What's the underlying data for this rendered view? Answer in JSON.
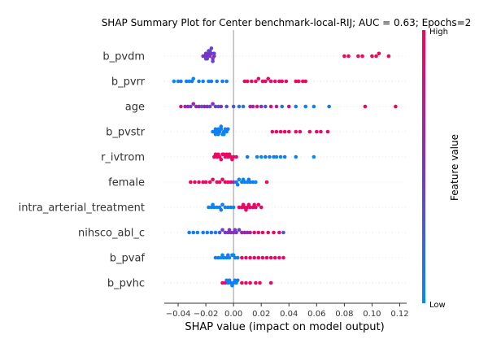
{
  "chart_data": {
    "type": "scatter",
    "subtype": "shap-beeswarm",
    "title": "SHAP Summary Plot for Center benchmark-local-RIJ; AUC = 0.63; Epochs=2",
    "xlabel": "SHAP value (impact on model output)",
    "xlim": [
      -0.05,
      0.125
    ],
    "xticks": [
      -0.04,
      -0.02,
      0.0,
      0.02,
      0.04,
      0.06,
      0.08,
      0.1,
      0.12
    ],
    "xtick_labels": [
      "−0.04",
      "−0.02",
      "0.00",
      "0.02",
      "0.04",
      "0.06",
      "0.08",
      "0.10",
      "0.12"
    ],
    "grid": false,
    "colorbar": {
      "label": "Feature value",
      "high_label": "High",
      "low_label": "Low",
      "low_color": "#008afb",
      "mid_color": "#7c33c4",
      "high_color": "#ff0052"
    },
    "features": [
      {
        "name": "b_pvdm",
        "points": [
          [
            -0.021,
            0.5
          ],
          [
            -0.02,
            0.5
          ],
          [
            -0.019,
            0.5
          ],
          [
            -0.018,
            0.5
          ],
          [
            -0.017,
            0.5
          ],
          [
            -0.016,
            0.5
          ],
          [
            -0.015,
            0.5
          ],
          [
            -0.014,
            0.5
          ],
          [
            -0.019,
            0.4
          ],
          [
            -0.017,
            0.4
          ],
          [
            -0.015,
            0.4
          ],
          [
            -0.018,
            0.4
          ],
          [
            -0.02,
            0.4
          ],
          [
            -0.016,
            0.4
          ],
          [
            -0.014,
            0.4
          ],
          [
            -0.022,
            0.5
          ],
          [
            0.08,
            0.95
          ],
          [
            0.083,
            0.95
          ],
          [
            0.09,
            0.95
          ],
          [
            0.093,
            0.95
          ],
          [
            0.1,
            0.95
          ],
          [
            0.103,
            0.95
          ],
          [
            0.105,
            0.95
          ],
          [
            0.112,
            0.95
          ]
        ]
      },
      {
        "name": "b_pvrr",
        "points": [
          [
            -0.043,
            0.0
          ],
          [
            -0.04,
            0.0
          ],
          [
            -0.038,
            0.1
          ],
          [
            -0.034,
            0.05
          ],
          [
            -0.032,
            0.0
          ],
          [
            -0.03,
            0.1
          ],
          [
            -0.029,
            0.0
          ],
          [
            -0.025,
            0.1
          ],
          [
            -0.022,
            0.05
          ],
          [
            -0.018,
            0.0
          ],
          [
            -0.016,
            0.1
          ],
          [
            -0.012,
            0.05
          ],
          [
            -0.008,
            0.1
          ],
          [
            -0.005,
            0.05
          ],
          [
            0.013,
            0.9
          ],
          [
            0.016,
            0.95
          ],
          [
            0.018,
            0.9
          ],
          [
            0.021,
            0.95
          ],
          [
            0.023,
            0.9
          ],
          [
            0.025,
            0.95
          ],
          [
            0.027,
            0.85
          ],
          [
            0.03,
            0.9
          ],
          [
            0.033,
            0.95
          ],
          [
            0.035,
            0.9
          ],
          [
            0.038,
            0.9
          ],
          [
            0.045,
            0.95
          ],
          [
            0.047,
            0.9
          ],
          [
            0.05,
            0.95
          ],
          [
            0.052,
            0.9
          ],
          [
            0.008,
            0.9
          ],
          [
            0.01,
            0.95
          ]
        ]
      },
      {
        "name": "age",
        "points": [
          [
            -0.038,
            0.75
          ],
          [
            -0.035,
            0.55
          ],
          [
            -0.033,
            0.65
          ],
          [
            -0.031,
            0.45
          ],
          [
            -0.029,
            0.6
          ],
          [
            -0.027,
            0.5
          ],
          [
            -0.025,
            0.7
          ],
          [
            -0.023,
            0.35
          ],
          [
            -0.021,
            0.5
          ],
          [
            -0.019,
            0.6
          ],
          [
            -0.017,
            0.4
          ],
          [
            -0.015,
            0.55
          ],
          [
            -0.013,
            0.45
          ],
          [
            -0.011,
            0.3
          ],
          [
            -0.009,
            0.5
          ],
          [
            -0.005,
            0.35
          ],
          [
            0.0,
            0.3
          ],
          [
            0.004,
            0.2
          ],
          [
            0.007,
            0.15
          ],
          [
            0.012,
            0.6
          ],
          [
            0.014,
            0.75
          ],
          [
            0.017,
            0.8
          ],
          [
            0.02,
            0.55
          ],
          [
            0.023,
            0.3
          ],
          [
            0.027,
            0.85
          ],
          [
            0.031,
            0.7
          ],
          [
            0.035,
            0.15
          ],
          [
            0.04,
            0.85
          ],
          [
            0.045,
            0.1
          ],
          [
            0.052,
            0.1
          ],
          [
            0.058,
            0.05
          ],
          [
            0.069,
            0.1
          ],
          [
            0.095,
            0.95
          ],
          [
            0.117,
            0.95
          ]
        ]
      },
      {
        "name": "b_pvstr",
        "points": [
          [
            -0.015,
            0.0
          ],
          [
            -0.014,
            0.05
          ],
          [
            -0.013,
            0.1
          ],
          [
            -0.012,
            0.0
          ],
          [
            -0.011,
            0.05
          ],
          [
            -0.01,
            0.1
          ],
          [
            -0.009,
            0.0
          ],
          [
            -0.008,
            0.05
          ],
          [
            -0.007,
            0.1
          ],
          [
            -0.006,
            0.0
          ],
          [
            -0.005,
            0.05
          ],
          [
            -0.004,
            0.1
          ],
          [
            -0.013,
            0.0
          ],
          [
            -0.011,
            0.1
          ],
          [
            -0.009,
            0.05
          ],
          [
            -0.007,
            0.0
          ],
          [
            0.028,
            0.9
          ],
          [
            0.031,
            0.95
          ],
          [
            0.034,
            0.9
          ],
          [
            0.037,
            0.95
          ],
          [
            0.04,
            0.9
          ],
          [
            0.045,
            0.95
          ],
          [
            0.048,
            0.9
          ],
          [
            0.055,
            0.95
          ],
          [
            0.06,
            0.9
          ],
          [
            0.063,
            0.95
          ],
          [
            0.068,
            0.9
          ]
        ]
      },
      {
        "name": "r_ivtrom",
        "points": [
          [
            -0.014,
            0.95
          ],
          [
            -0.012,
            0.9
          ],
          [
            -0.01,
            0.95
          ],
          [
            -0.008,
            0.9
          ],
          [
            -0.006,
            0.95
          ],
          [
            -0.004,
            0.9
          ],
          [
            -0.002,
            0.95
          ],
          [
            0.0,
            0.9
          ],
          [
            -0.013,
            0.9
          ],
          [
            -0.009,
            0.95
          ],
          [
            -0.005,
            0.9
          ],
          [
            -0.011,
            0.95
          ],
          [
            -0.007,
            0.9
          ],
          [
            -0.003,
            0.95
          ],
          [
            0.002,
            0.9
          ],
          [
            -0.001,
            0.9
          ],
          [
            0.01,
            0.1
          ],
          [
            0.017,
            0.05
          ],
          [
            0.02,
            0.0
          ],
          [
            0.023,
            0.1
          ],
          [
            0.026,
            0.05
          ],
          [
            0.029,
            0.1
          ],
          [
            0.031,
            0.0
          ],
          [
            0.034,
            0.05
          ],
          [
            0.037,
            0.1
          ],
          [
            0.045,
            0.05
          ],
          [
            0.058,
            0.0
          ]
        ]
      },
      {
        "name": "female",
        "points": [
          [
            -0.031,
            0.95
          ],
          [
            -0.028,
            0.9
          ],
          [
            -0.025,
            0.95
          ],
          [
            -0.022,
            0.9
          ],
          [
            -0.02,
            0.95
          ],
          [
            -0.017,
            0.9
          ],
          [
            -0.015,
            0.95
          ],
          [
            -0.012,
            0.9
          ],
          [
            -0.01,
            0.95
          ],
          [
            -0.008,
            0.9
          ],
          [
            -0.006,
            0.95
          ],
          [
            -0.004,
            0.9
          ],
          [
            -0.002,
            0.95
          ],
          [
            0.0,
            0.5
          ],
          [
            0.002,
            0.1
          ],
          [
            0.004,
            0.0
          ],
          [
            0.006,
            0.05
          ],
          [
            0.008,
            0.1
          ],
          [
            0.01,
            0.0
          ],
          [
            0.012,
            0.05
          ],
          [
            0.014,
            0.1
          ],
          [
            0.016,
            0.0
          ],
          [
            0.003,
            0.05
          ],
          [
            0.007,
            0.0
          ],
          [
            0.011,
            0.1
          ],
          [
            0.024,
            0.95
          ]
        ]
      },
      {
        "name": "intra_arterial_treatment",
        "points": [
          [
            -0.018,
            0.0
          ],
          [
            -0.016,
            0.05
          ],
          [
            -0.014,
            0.1
          ],
          [
            -0.012,
            0.0
          ],
          [
            -0.01,
            0.05
          ],
          [
            -0.008,
            0.1
          ],
          [
            -0.006,
            0.0
          ],
          [
            -0.004,
            0.05
          ],
          [
            -0.002,
            0.1
          ],
          [
            0.0,
            0.05
          ],
          [
            -0.015,
            0.0
          ],
          [
            -0.009,
            0.1
          ],
          [
            0.004,
            0.9
          ],
          [
            0.006,
            0.95
          ],
          [
            0.008,
            0.9
          ],
          [
            0.01,
            0.95
          ],
          [
            0.012,
            0.9
          ],
          [
            0.014,
            0.95
          ],
          [
            0.016,
            0.9
          ],
          [
            0.018,
            0.95
          ],
          [
            0.02,
            0.9
          ],
          [
            0.007,
            0.95
          ],
          [
            0.011,
            0.9
          ],
          [
            0.015,
            0.95
          ],
          [
            0.009,
            0.9
          ]
        ]
      },
      {
        "name": "nihsco_abl_c",
        "points": [
          [
            -0.032,
            0.05
          ],
          [
            -0.029,
            0.1
          ],
          [
            -0.026,
            0.0
          ],
          [
            -0.022,
            0.1
          ],
          [
            -0.019,
            0.05
          ],
          [
            -0.016,
            0.15
          ],
          [
            -0.013,
            0.1
          ],
          [
            -0.01,
            0.3
          ],
          [
            -0.008,
            0.45
          ],
          [
            -0.006,
            0.55
          ],
          [
            -0.004,
            0.5
          ],
          [
            -0.002,
            0.6
          ],
          [
            0.0,
            0.5
          ],
          [
            0.002,
            0.55
          ],
          [
            0.004,
            0.4
          ],
          [
            0.006,
            0.6
          ],
          [
            0.008,
            0.65
          ],
          [
            0.01,
            0.55
          ],
          [
            0.012,
            0.7
          ],
          [
            0.015,
            0.9
          ],
          [
            0.018,
            0.85
          ],
          [
            0.021,
            0.95
          ],
          [
            0.025,
            0.9
          ],
          [
            0.029,
            0.95
          ],
          [
            0.033,
            0.9
          ],
          [
            0.036,
            0.3
          ],
          [
            -0.003,
            0.5
          ],
          [
            0.001,
            0.45
          ]
        ]
      },
      {
        "name": "b_pvaf",
        "points": [
          [
            -0.013,
            0.05
          ],
          [
            -0.011,
            0.1
          ],
          [
            -0.009,
            0.0
          ],
          [
            -0.007,
            0.05
          ],
          [
            -0.005,
            0.1
          ],
          [
            -0.003,
            0.0
          ],
          [
            -0.001,
            0.05
          ],
          [
            0.001,
            0.1
          ],
          [
            0.003,
            0.05
          ],
          [
            -0.008,
            0.0
          ],
          [
            -0.004,
            0.1
          ],
          [
            0.0,
            0.0
          ],
          [
            0.006,
            0.95
          ],
          [
            0.009,
            0.9
          ],
          [
            0.012,
            0.95
          ],
          [
            0.015,
            0.9
          ],
          [
            0.018,
            0.95
          ],
          [
            0.021,
            0.9
          ],
          [
            0.024,
            0.95
          ],
          [
            0.027,
            0.9
          ],
          [
            0.03,
            0.95
          ],
          [
            0.033,
            0.9
          ],
          [
            0.036,
            0.95
          ]
        ]
      },
      {
        "name": "b_pvhc",
        "points": [
          [
            -0.008,
            0.95
          ],
          [
            -0.006,
            0.9
          ],
          [
            -0.004,
            0.1
          ],
          [
            -0.002,
            0.05
          ],
          [
            0.0,
            0.1
          ],
          [
            0.002,
            0.0
          ],
          [
            -0.003,
            0.05
          ],
          [
            -0.001,
            0.0
          ],
          [
            0.001,
            0.05
          ],
          [
            -0.005,
            0.1
          ],
          [
            0.003,
            0.1
          ],
          [
            0.006,
            0.95
          ],
          [
            0.009,
            0.9
          ],
          [
            0.012,
            0.95
          ],
          [
            0.016,
            0.9
          ],
          [
            0.019,
            0.95
          ],
          [
            0.027,
            0.9
          ]
        ]
      }
    ]
  }
}
